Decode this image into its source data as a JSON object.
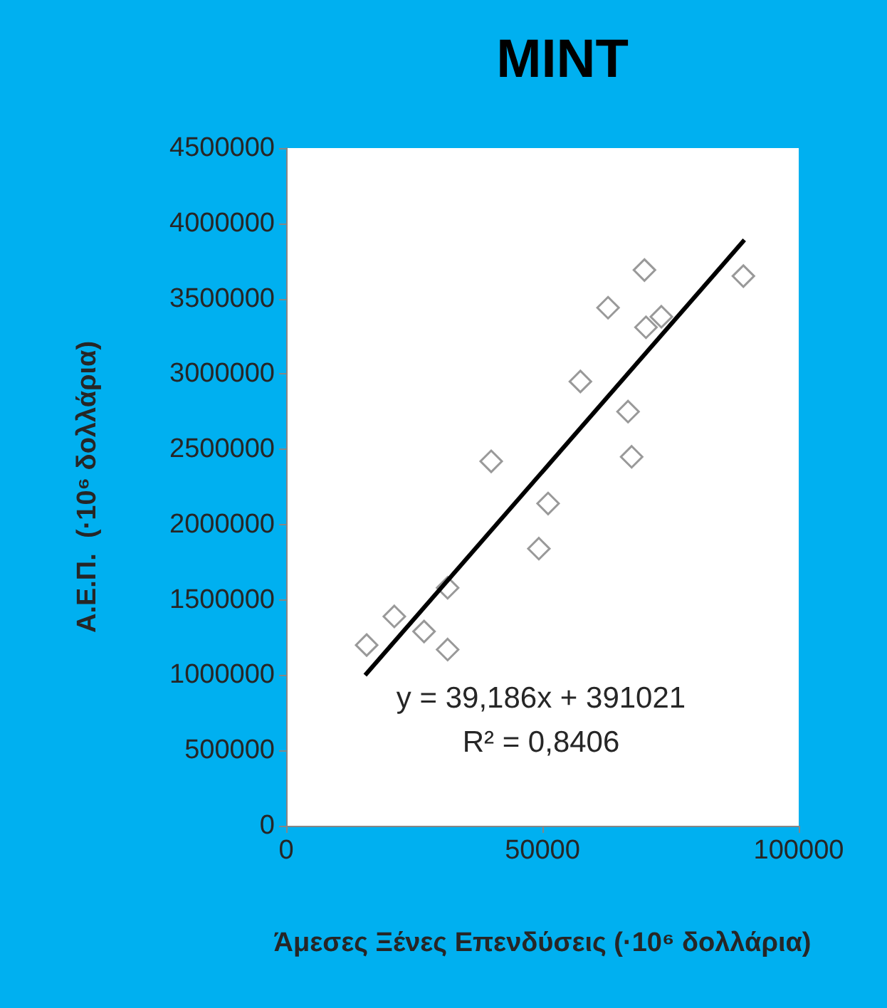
{
  "chart_data": {
    "type": "scatter",
    "title": "MINT",
    "xlabel": "Άμεσες Ξένες Επενδύσεις (·10⁶ δολλάρια)",
    "ylabel": "Α.Ε.Π.  (·10⁶ δολλάρια)",
    "x": [
      15700,
      21100,
      26900,
      31500,
      31500,
      40000,
      49300,
      51100,
      57400,
      62800,
      66700,
      67400,
      69900,
      70200,
      73200,
      89200
    ],
    "series": [
      {
        "color": "#7f7f7f",
        "marker": "diamond",
        "values": [
          1200000,
          1390000,
          1290000,
          1580000,
          1170000,
          2420000,
          1840000,
          2140000,
          2950000,
          3440000,
          2750000,
          2450000,
          3690000,
          3310000,
          3380000,
          3650000
        ]
      },
      {
        "type": "line",
        "color": "#000000",
        "marker": "none",
        "line_style": "solid",
        "x": [
          15400,
          89400
        ],
        "values": [
          1000000,
          3890000
        ]
      }
    ],
    "xlim": [
      0,
      100000
    ],
    "xticks": [
      0,
      50000,
      100000
    ],
    "ylim": [
      0,
      4500000
    ],
    "yticks": [
      0,
      500000,
      1000000,
      1500000,
      2000000,
      2500000,
      3000000,
      3500000,
      4000000,
      4500000
    ],
    "annotations": [
      "y = 39,186x + 391021",
      "R² = 0,8406"
    ],
    "grid": false
  }
}
